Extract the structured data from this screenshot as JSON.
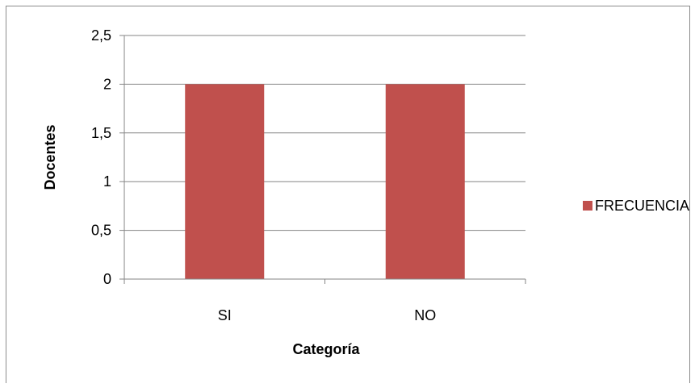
{
  "chart_data": {
    "type": "bar",
    "categories": [
      "SI",
      "NO"
    ],
    "series": [
      {
        "name": "FRECUENCIA",
        "values": [
          2,
          2
        ],
        "color": "#c0504d"
      }
    ],
    "xlabel": "Categoría",
    "ylabel": "Docentes",
    "ylim": [
      0,
      2.5
    ],
    "yticks": [
      0,
      0.5,
      1,
      1.5,
      2,
      2.5
    ],
    "ytick_labels": [
      "0",
      "0,5",
      "1",
      "1,5",
      "2",
      "2,5"
    ],
    "grid": true,
    "legend_position": "right",
    "colors": {
      "bar": "#c0504d",
      "gridline": "#868686",
      "axis": "#868686",
      "frame": "#8c8c8c"
    }
  }
}
